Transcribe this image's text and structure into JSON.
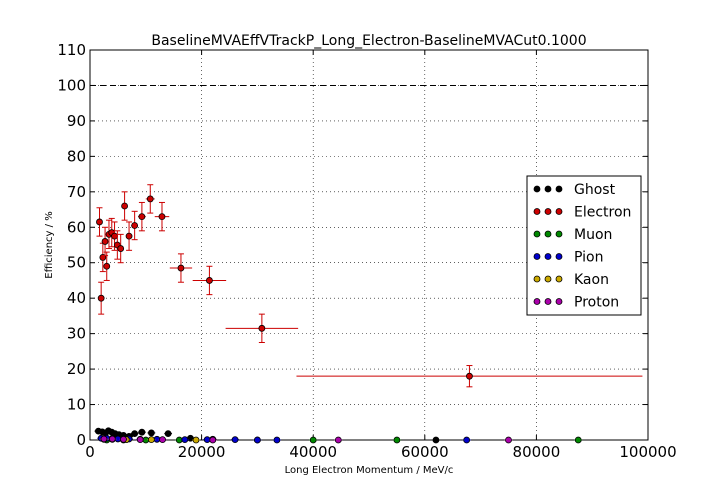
{
  "chart_data": {
    "type": "scatter",
    "title": "BaselineMVAEffVTrackP_Long_Electron-BaselineMVACut0.1000",
    "xlabel": "Long Electron Momentum / MeV/c",
    "ylabel": "Efficiency / %",
    "xlim": [
      0,
      100000
    ],
    "ylim": [
      0,
      110
    ],
    "xticks": [
      "0",
      "20000",
      "40000",
      "60000",
      "80000",
      "100000"
    ],
    "yticks": [
      "0",
      "10",
      "20",
      "30",
      "40",
      "50",
      "60",
      "70",
      "80",
      "90",
      "100",
      "110"
    ],
    "grid": true,
    "reference_line": 100,
    "legend_position": "right",
    "colors": {
      "Ghost": "#000000",
      "Electron": "#cc0000",
      "Muon": "#008800",
      "Pion": "#0000cc",
      "Kaon": "#ccaa00",
      "Proton": "#aa00aa"
    },
    "series": [
      {
        "name": "Ghost",
        "points": [
          {
            "x": 1500,
            "y": 2.5
          },
          {
            "x": 2200,
            "y": 2.3
          },
          {
            "x": 2800,
            "y": 2.0
          },
          {
            "x": 3300,
            "y": 2.6
          },
          {
            "x": 3900,
            "y": 2.2
          },
          {
            "x": 4500,
            "y": 1.8
          },
          {
            "x": 5200,
            "y": 1.5
          },
          {
            "x": 6000,
            "y": 1.3
          },
          {
            "x": 7000,
            "y": 1.0
          },
          {
            "x": 8000,
            "y": 1.8
          },
          {
            "x": 9300,
            "y": 2.2
          },
          {
            "x": 11000,
            "y": 2.0
          },
          {
            "x": 14000,
            "y": 1.8
          },
          {
            "x": 18000,
            "y": 0.5
          },
          {
            "x": 22000,
            "y": 0.2
          },
          {
            "x": 30000,
            "y": 0.0
          },
          {
            "x": 62000,
            "y": 0.0
          }
        ]
      },
      {
        "name": "Electron",
        "points": [
          {
            "x": 1700,
            "y": 61.5,
            "xerr": 300,
            "yerr": 4.0
          },
          {
            "x": 2000,
            "y": 40.0,
            "xerr": 300,
            "yerr": 4.5
          },
          {
            "x": 2300,
            "y": 51.5,
            "xerr": 300,
            "yerr": 4.0
          },
          {
            "x": 2700,
            "y": 56.0,
            "xerr": 300,
            "yerr": 4.0
          },
          {
            "x": 3000,
            "y": 49.0,
            "xerr": 300,
            "yerr": 4.0
          },
          {
            "x": 3400,
            "y": 58.0,
            "xerr": 300,
            "yerr": 4.0
          },
          {
            "x": 3900,
            "y": 58.5,
            "xerr": 300,
            "yerr": 4.0
          },
          {
            "x": 4400,
            "y": 57.5,
            "xerr": 300,
            "yerr": 4.0
          },
          {
            "x": 4900,
            "y": 55.0,
            "xerr": 400,
            "yerr": 4.0
          },
          {
            "x": 5500,
            "y": 54.0,
            "xerr": 400,
            "yerr": 4.0
          },
          {
            "x": 6200,
            "y": 66.0,
            "xerr": 400,
            "yerr": 4.0
          },
          {
            "x": 7000,
            "y": 57.5,
            "xerr": 500,
            "yerr": 4.0
          },
          {
            "x": 8000,
            "y": 60.5,
            "xerr": 600,
            "yerr": 4.0
          },
          {
            "x": 9300,
            "y": 63.0,
            "xerr": 700,
            "yerr": 4.0
          },
          {
            "x": 10800,
            "y": 68.0,
            "xerr": 800,
            "yerr": 4.0
          },
          {
            "x": 12900,
            "y": 63.0,
            "xerr": 1300,
            "yerr": 4.0
          },
          {
            "x": 16300,
            "y": 48.5,
            "xerr": 2000,
            "yerr": 4.0
          },
          {
            "x": 21400,
            "y": 45.0,
            "xerr": 3000,
            "yerr": 4.0
          },
          {
            "x": 30800,
            "y": 31.5,
            "xerr": 6500,
            "yerr": 4.0
          },
          {
            "x": 68000,
            "y": 18.0,
            "xerr": 31000,
            "yerr": 3.0
          }
        ]
      },
      {
        "name": "Muon",
        "points": [
          {
            "x": 3000,
            "y": 0.0
          },
          {
            "x": 6000,
            "y": 0.0
          },
          {
            "x": 10000,
            "y": 0.0
          },
          {
            "x": 16000,
            "y": 0.0
          },
          {
            "x": 40000,
            "y": 0.0
          },
          {
            "x": 55000,
            "y": 0.0
          },
          {
            "x": 87500,
            "y": 0.0
          }
        ]
      },
      {
        "name": "Pion",
        "points": [
          {
            "x": 2000,
            "y": 0.5
          },
          {
            "x": 3000,
            "y": 0.5
          },
          {
            "x": 4000,
            "y": 0.4
          },
          {
            "x": 5000,
            "y": 0.3
          },
          {
            "x": 7000,
            "y": 0.3
          },
          {
            "x": 9000,
            "y": 0.2
          },
          {
            "x": 12000,
            "y": 0.2
          },
          {
            "x": 17000,
            "y": 0.1
          },
          {
            "x": 21000,
            "y": 0.1
          },
          {
            "x": 26000,
            "y": 0.1
          },
          {
            "x": 30000,
            "y": 0.0
          },
          {
            "x": 33500,
            "y": 0.0
          },
          {
            "x": 67500,
            "y": 0.0
          }
        ]
      },
      {
        "name": "Kaon",
        "points": [
          {
            "x": 2500,
            "y": 0.2
          },
          {
            "x": 4000,
            "y": 0.2
          },
          {
            "x": 6500,
            "y": 0.1
          },
          {
            "x": 11000,
            "y": 0.1
          },
          {
            "x": 19000,
            "y": 0.0
          }
        ]
      },
      {
        "name": "Proton",
        "points": [
          {
            "x": 2500,
            "y": 0.3
          },
          {
            "x": 4000,
            "y": 0.3
          },
          {
            "x": 6000,
            "y": 0.2
          },
          {
            "x": 9000,
            "y": 0.1
          },
          {
            "x": 13000,
            "y": 0.1
          },
          {
            "x": 22000,
            "y": 0.0
          },
          {
            "x": 44500,
            "y": 0.0
          },
          {
            "x": 75000,
            "y": 0.0
          }
        ]
      }
    ]
  }
}
